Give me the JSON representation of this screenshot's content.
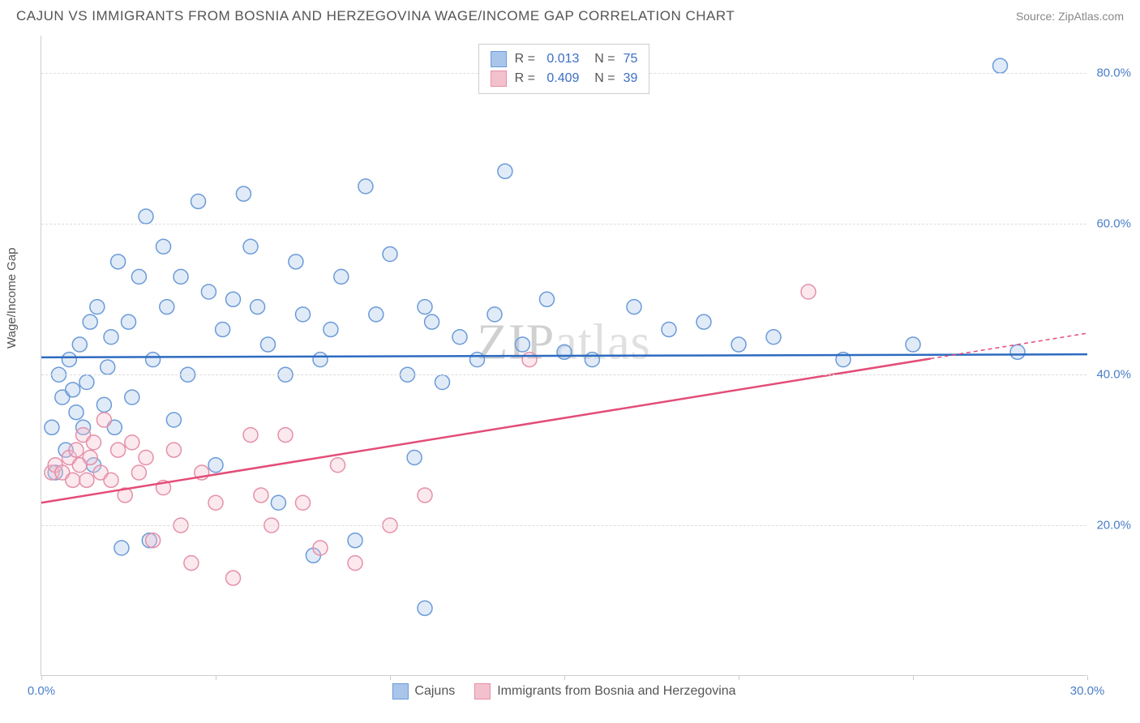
{
  "header": {
    "title": "CAJUN VS IMMIGRANTS FROM BOSNIA AND HERZEGOVINA WAGE/INCOME GAP CORRELATION CHART",
    "source": "Source: ZipAtlas.com"
  },
  "chart": {
    "type": "scatter",
    "y_axis_label": "Wage/Income Gap",
    "watermark": "ZIPatlas",
    "background_color": "#ffffff",
    "grid_color": "#dddddd",
    "axis_color": "#cccccc",
    "tick_label_color": "#4a7ec7",
    "xlim": [
      0,
      30
    ],
    "ylim": [
      0,
      85
    ],
    "x_ticks": [
      0,
      5,
      10,
      15,
      20,
      25,
      30
    ],
    "x_tick_labels": [
      "0.0%",
      "",
      "",
      "",
      "",
      "",
      "30.0%"
    ],
    "y_ticks": [
      20,
      40,
      60,
      80
    ],
    "y_tick_labels": [
      "20.0%",
      "40.0%",
      "60.0%",
      "80.0%"
    ],
    "marker_radius": 9,
    "marker_stroke_width": 1.5,
    "marker_fill_opacity": 0.35,
    "trendline_width": 2.5,
    "series": [
      {
        "name": "Cajuns",
        "color_fill": "#a9c5ea",
        "color_stroke": "#6b9bd8",
        "trend_color": "#2d6bc0",
        "R": "0.013",
        "N": "75",
        "trendline": {
          "x1": 0,
          "y1": 42.3,
          "x2": 30,
          "y2": 42.7
        },
        "points": [
          [
            0.3,
            33
          ],
          [
            0.4,
            27
          ],
          [
            0.5,
            40
          ],
          [
            0.6,
            37
          ],
          [
            0.7,
            30
          ],
          [
            0.8,
            42
          ],
          [
            0.9,
            38
          ],
          [
            1.0,
            35
          ],
          [
            1.1,
            44
          ],
          [
            1.2,
            33
          ],
          [
            1.3,
            39
          ],
          [
            1.4,
            47
          ],
          [
            1.5,
            28
          ],
          [
            1.6,
            49
          ],
          [
            1.8,
            36
          ],
          [
            1.9,
            41
          ],
          [
            2.0,
            45
          ],
          [
            2.1,
            33
          ],
          [
            2.2,
            55
          ],
          [
            2.3,
            17
          ],
          [
            2.5,
            47
          ],
          [
            2.6,
            37
          ],
          [
            2.8,
            53
          ],
          [
            3.0,
            61
          ],
          [
            3.1,
            18
          ],
          [
            3.2,
            42
          ],
          [
            3.5,
            57
          ],
          [
            3.6,
            49
          ],
          [
            3.8,
            34
          ],
          [
            4.0,
            53
          ],
          [
            4.2,
            40
          ],
          [
            4.5,
            63
          ],
          [
            4.8,
            51
          ],
          [
            5.0,
            28
          ],
          [
            5.2,
            46
          ],
          [
            5.5,
            50
          ],
          [
            5.8,
            64
          ],
          [
            6.0,
            57
          ],
          [
            6.2,
            49
          ],
          [
            6.5,
            44
          ],
          [
            6.8,
            23
          ],
          [
            7.0,
            40
          ],
          [
            7.3,
            55
          ],
          [
            7.5,
            48
          ],
          [
            7.8,
            16
          ],
          [
            8.0,
            42
          ],
          [
            8.3,
            46
          ],
          [
            8.6,
            53
          ],
          [
            9.0,
            18
          ],
          [
            9.3,
            65
          ],
          [
            9.6,
            48
          ],
          [
            10.0,
            56
          ],
          [
            10.5,
            40
          ],
          [
            10.7,
            29
          ],
          [
            11.0,
            49
          ],
          [
            11.2,
            47
          ],
          [
            11.5,
            39
          ],
          [
            12.0,
            45
          ],
          [
            12.5,
            42
          ],
          [
            13.0,
            48
          ],
          [
            13.3,
            67
          ],
          [
            13.8,
            44
          ],
          [
            14.5,
            50
          ],
          [
            15.0,
            43
          ],
          [
            15.8,
            42
          ],
          [
            17.0,
            49
          ],
          [
            18.0,
            46
          ],
          [
            19.0,
            47
          ],
          [
            20.0,
            44
          ],
          [
            21.0,
            45
          ],
          [
            23.0,
            42
          ],
          [
            25.0,
            44
          ],
          [
            27.5,
            81
          ],
          [
            28.0,
            43
          ],
          [
            11.0,
            9
          ]
        ]
      },
      {
        "name": "Immigrants from Bosnia and Herzegovina",
        "color_fill": "#f3c1cd",
        "color_stroke": "#e590a8",
        "trend_color": "#e34d77",
        "R": "0.409",
        "N": "39",
        "trendline": {
          "x1": 0,
          "y1": 23.0,
          "x2": 30,
          "y2": 45.5
        },
        "trendline_dash_from_x": 25.5,
        "points": [
          [
            0.3,
            27
          ],
          [
            0.4,
            28
          ],
          [
            0.6,
            27
          ],
          [
            0.8,
            29
          ],
          [
            0.9,
            26
          ],
          [
            1.0,
            30
          ],
          [
            1.1,
            28
          ],
          [
            1.2,
            32
          ],
          [
            1.3,
            26
          ],
          [
            1.4,
            29
          ],
          [
            1.5,
            31
          ],
          [
            1.7,
            27
          ],
          [
            1.8,
            34
          ],
          [
            2.0,
            26
          ],
          [
            2.2,
            30
          ],
          [
            2.4,
            24
          ],
          [
            2.6,
            31
          ],
          [
            2.8,
            27
          ],
          [
            3.0,
            29
          ],
          [
            3.2,
            18
          ],
          [
            3.5,
            25
          ],
          [
            3.8,
            30
          ],
          [
            4.0,
            20
          ],
          [
            4.3,
            15
          ],
          [
            4.6,
            27
          ],
          [
            5.0,
            23
          ],
          [
            5.5,
            13
          ],
          [
            6.0,
            32
          ],
          [
            6.3,
            24
          ],
          [
            6.6,
            20
          ],
          [
            7.0,
            32
          ],
          [
            7.5,
            23
          ],
          [
            8.0,
            17
          ],
          [
            8.5,
            28
          ],
          [
            9.0,
            15
          ],
          [
            10.0,
            20
          ],
          [
            11.0,
            24
          ],
          [
            14.0,
            42
          ],
          [
            22.0,
            51
          ]
        ]
      }
    ],
    "legend_bottom": [
      {
        "label": "Cajuns",
        "fill": "#a9c5ea",
        "stroke": "#6b9bd8"
      },
      {
        "label": "Immigrants from Bosnia and Herzegovina",
        "fill": "#f3c1cd",
        "stroke": "#e590a8"
      }
    ]
  }
}
